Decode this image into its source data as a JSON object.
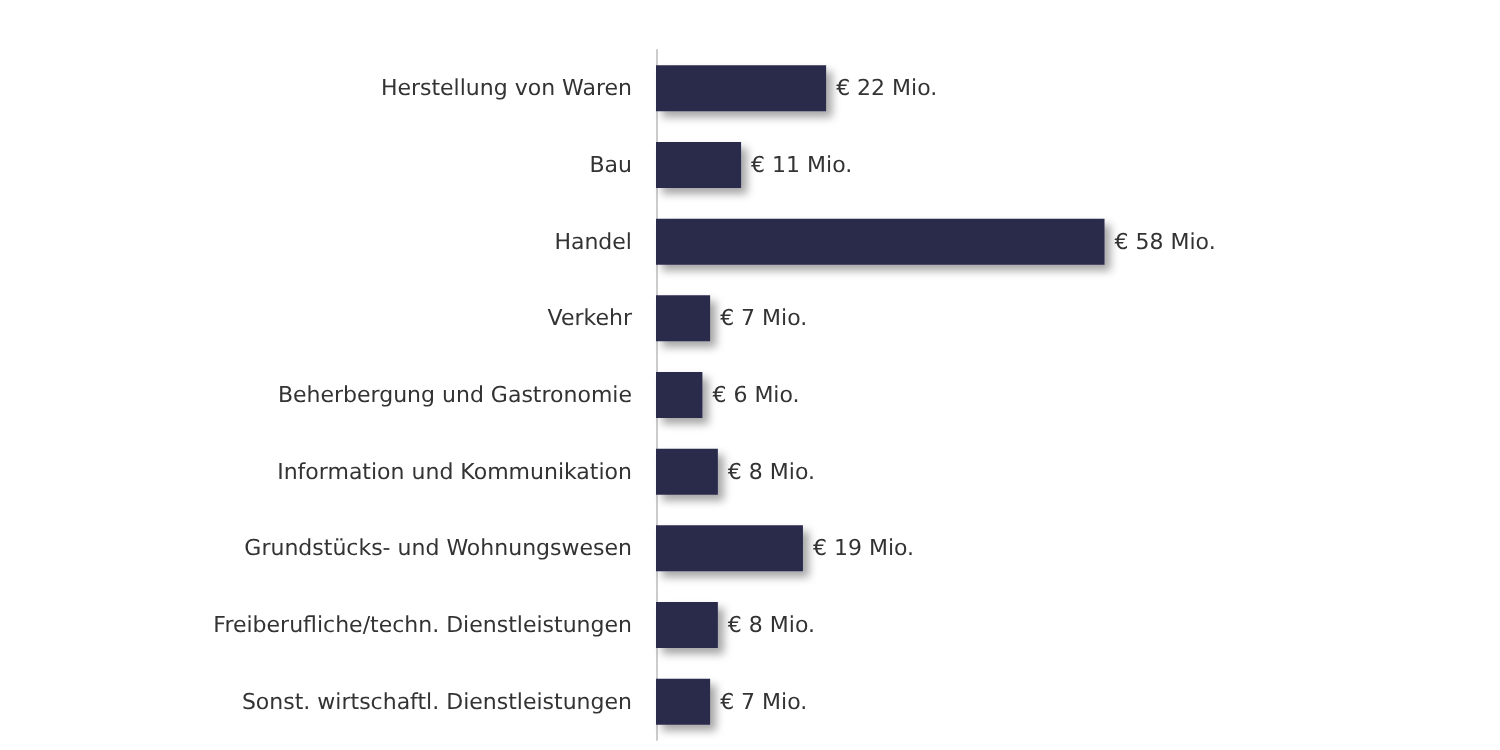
{
  "chart_data": {
    "type": "bar",
    "orientation": "horizontal",
    "categories": [
      "Herstellung von Waren",
      "Bau",
      "Handel",
      "Verkehr",
      "Beherbergung und Gastronomie",
      "Information und Kommunikation",
      "Grundstücks- und Wohnungswesen",
      "Freiberufliche/techn. Dienstleistungen",
      "Sonst. wirtschaftl. Dienstleistungen"
    ],
    "values": [
      22,
      11,
      58,
      7,
      6,
      8,
      19,
      8,
      7
    ],
    "value_labels": [
      "€ 22 Mio.",
      "€ 11 Mio.",
      "€ 58 Mio.",
      "€ 7 Mio.",
      "€ 6 Mio.",
      "€ 8 Mio.",
      "€ 19 Mio.",
      "€ 8 Mio.",
      "€ 7 Mio."
    ],
    "color": "#2b2a4c",
    "tick_labels": "y"
  }
}
